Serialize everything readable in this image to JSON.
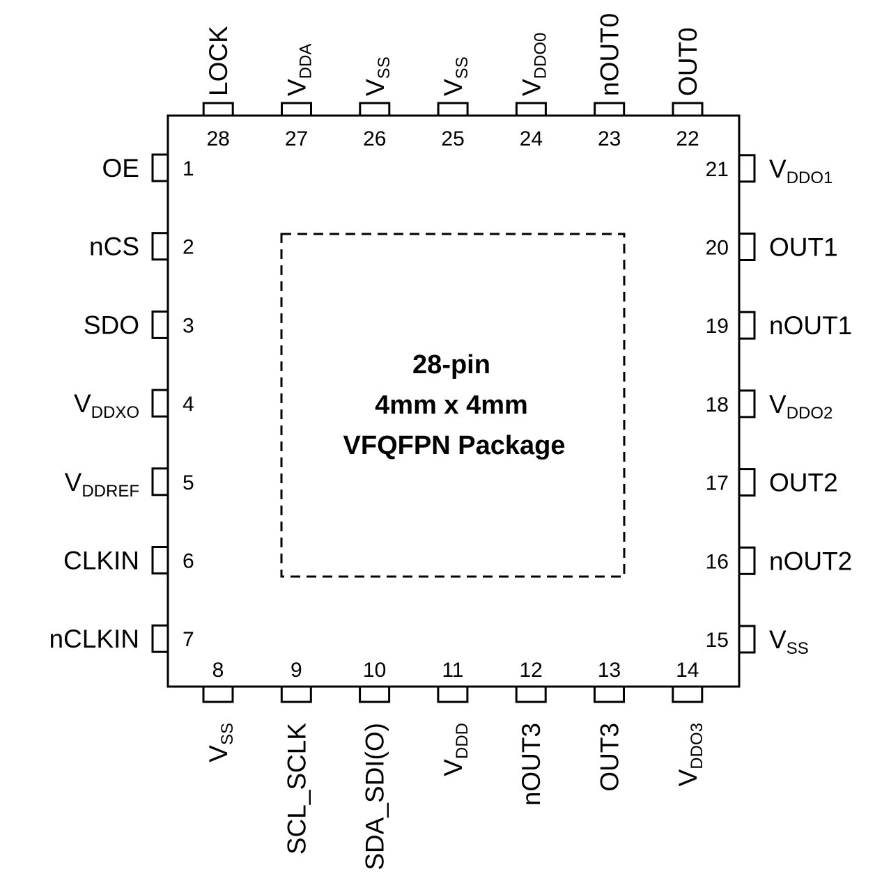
{
  "package": {
    "lines": [
      "28-pin",
      "4mm x 4mm",
      "VFQFPN Package"
    ]
  },
  "pins": [
    {
      "number": 1,
      "name": "OE"
    },
    {
      "number": 2,
      "name": "nCS"
    },
    {
      "number": 3,
      "name": "SDO"
    },
    {
      "number": 4,
      "name": "V",
      "sub": "DDXO"
    },
    {
      "number": 5,
      "name": "V",
      "sub": "DDREF"
    },
    {
      "number": 6,
      "name": "CLKIN"
    },
    {
      "number": 7,
      "name": "nCLKIN"
    },
    {
      "number": 8,
      "name": "V",
      "sub": "SS"
    },
    {
      "number": 9,
      "name": "SCL_SCLK"
    },
    {
      "number": 10,
      "name": "SDA_SDI(O)"
    },
    {
      "number": 11,
      "name": "V",
      "sub": "DDD"
    },
    {
      "number": 12,
      "name": "nOUT3"
    },
    {
      "number": 13,
      "name": "OUT3"
    },
    {
      "number": 14,
      "name": "V",
      "sub": "DDO3"
    },
    {
      "number": 15,
      "name": "V",
      "sub": "SS"
    },
    {
      "number": 16,
      "name": "nOUT2"
    },
    {
      "number": 17,
      "name": "OUT2"
    },
    {
      "number": 18,
      "name": "V",
      "sub": "DDO2"
    },
    {
      "number": 19,
      "name": "nOUT1"
    },
    {
      "number": 20,
      "name": "OUT1"
    },
    {
      "number": 21,
      "name": "V",
      "sub": "DDO1"
    },
    {
      "number": 22,
      "name": "OUT0"
    },
    {
      "number": 23,
      "name": "nOUT0"
    },
    {
      "number": 24,
      "name": "V",
      "sub": "DDO0"
    },
    {
      "number": 25,
      "name": "V",
      "sub": "SS"
    },
    {
      "number": 26,
      "name": "V",
      "sub": "SS"
    },
    {
      "number": 27,
      "name": "V",
      "sub": "DDA"
    },
    {
      "number": 28,
      "name": "LOCK"
    }
  ]
}
